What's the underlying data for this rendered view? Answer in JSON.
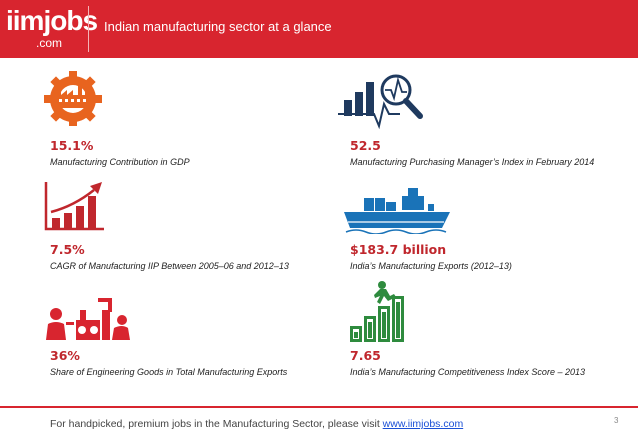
{
  "header": {
    "logo_main": "iimjobs",
    "logo_sub": ".com",
    "title": "Indian manufacturing sector at a glance"
  },
  "stats": [
    {
      "value": "15.1%",
      "label": "Manufacturing Contribution in GDP",
      "icon": "factory-gear-icon"
    },
    {
      "value": "52.5",
      "label": "Manufacturing Purchasing Manager’s Index in February 2014",
      "icon": "magnifier-chart-icon"
    },
    {
      "value": "7.5%",
      "label": "CAGR of Manufacturing IIP Between 2005–06 and 2012–13",
      "icon": "growth-bars-icon"
    },
    {
      "value": "$183.7 billion",
      "label": "India’s Manufacturing Exports (2012–13)",
      "icon": "cargo-ship-icon"
    },
    {
      "value": "36%",
      "label": "Share of Engineering Goods in Total Manufacturing Exports",
      "icon": "engineering-workers-icon"
    },
    {
      "value": "7.65",
      "label": "India’s Manufacturing Competitiveness Index Score – 2013",
      "icon": "climbing-stairs-icon"
    }
  ],
  "footer": {
    "text": "For handpicked, premium jobs in the Manufacturing Sector, please visit ",
    "link_text": "www.iimjobs.com",
    "page_number": "3"
  },
  "colors": {
    "brand_red": "#d8252f",
    "stat_red": "#c0272d",
    "navy": "#1f3a5f",
    "ship_blue": "#1a73b8",
    "green": "#2e8b3e"
  }
}
